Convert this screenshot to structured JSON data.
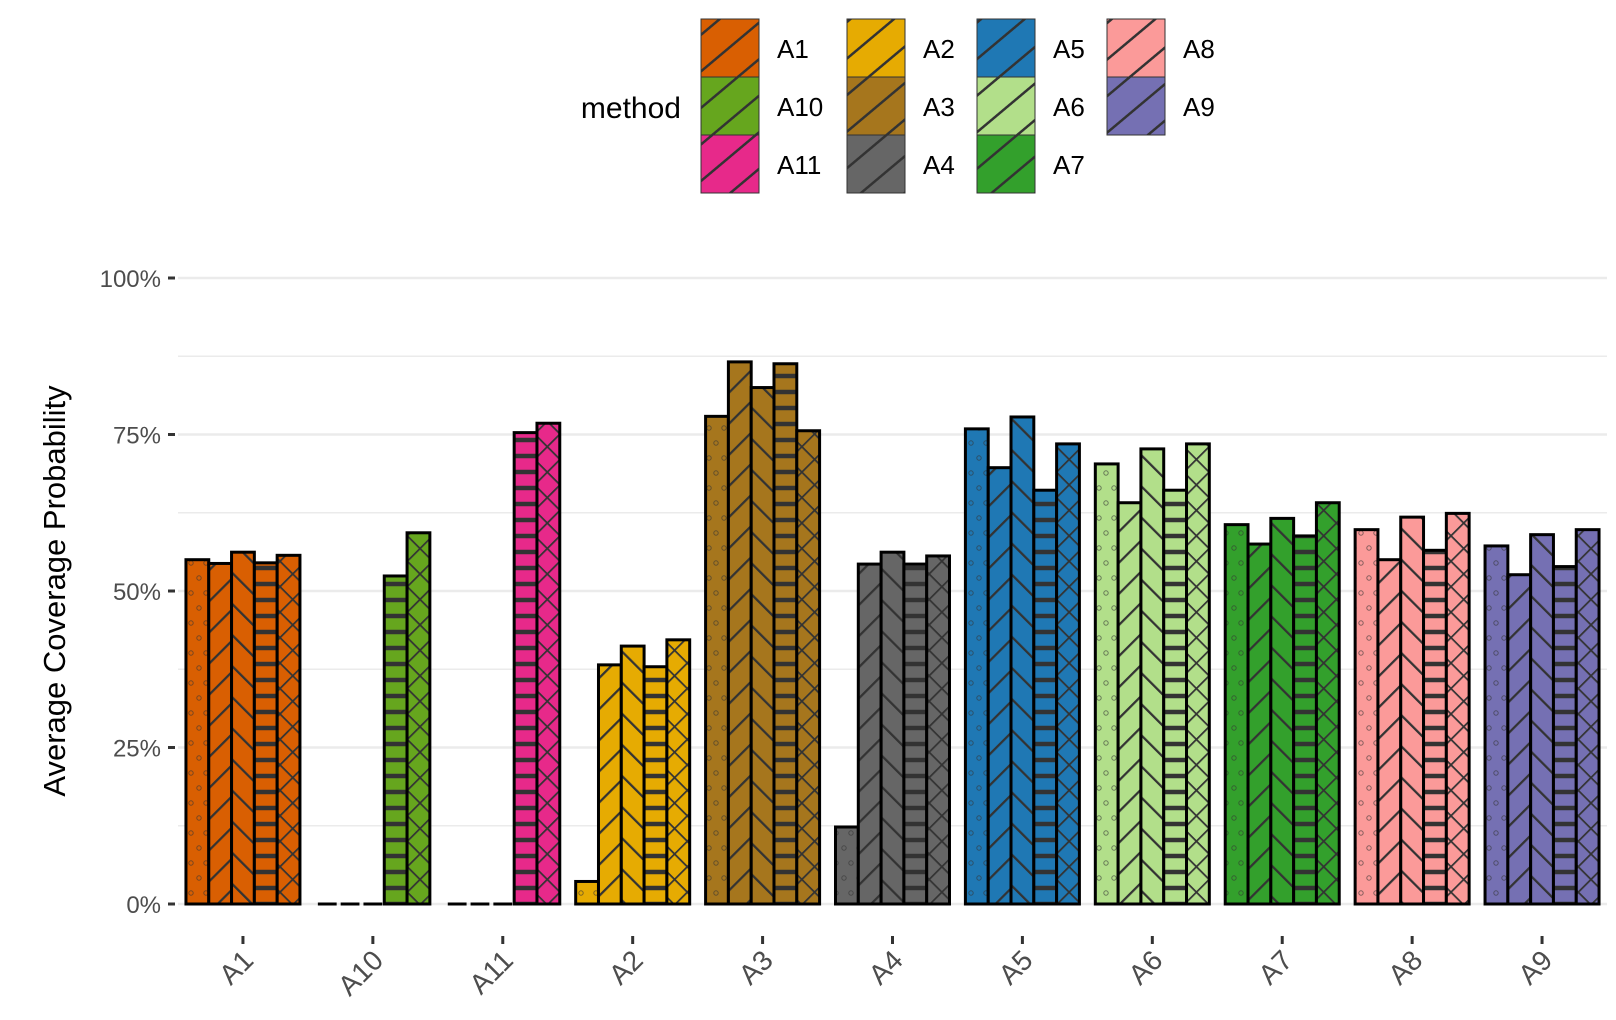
{
  "chart_data": {
    "type": "bar",
    "title": "",
    "xlabel": "",
    "ylabel": "Average Coverage Probability",
    "ylim": [
      0,
      1
    ],
    "y_ticks": [
      0,
      0.25,
      0.5,
      0.75,
      1.0
    ],
    "y_tick_labels": [
      "0%",
      "25%",
      "50%",
      "75%",
      "100%"
    ],
    "grid": true,
    "legend": {
      "title": "method",
      "placement": "top",
      "entries": [
        "A1",
        "A10",
        "A11",
        "A2",
        "A3",
        "A4",
        "A5",
        "A6",
        "A7",
        "A8",
        "A9"
      ]
    },
    "categories": [
      "A1",
      "A10",
      "A11",
      "A2",
      "A3",
      "A4",
      "A5",
      "A6",
      "A7",
      "A8",
      "A9"
    ],
    "category_colors": {
      "A1": "#d95f02",
      "A10": "#66a61e",
      "A11": "#e7298a",
      "A2": "#e6ab02",
      "A3": "#a6761d",
      "A4": "#666666",
      "A5": "#1f78b4",
      "A6": "#b2df8a",
      "A7": "#33a02c",
      "A8": "#fb9a99",
      "A9": "#7570b3"
    },
    "sub_bar_patterns": [
      "dots",
      "stripe-forward",
      "stripe-backward",
      "stripe-horizontal",
      "crosshatch"
    ],
    "series": [
      {
        "name": "bar1-dots",
        "values": [
          0.55,
          0.0,
          0.0,
          0.036,
          0.779,
          0.123,
          0.759,
          0.703,
          0.606,
          0.598,
          0.572
        ]
      },
      {
        "name": "bar2-forward",
        "values": [
          0.544,
          0.0,
          0.0,
          0.382,
          0.866,
          0.543,
          0.697,
          0.641,
          0.575,
          0.55,
          0.526
        ]
      },
      {
        "name": "bar3-backward",
        "values": [
          0.562,
          0.0,
          0.0,
          0.412,
          0.825,
          0.562,
          0.778,
          0.727,
          0.616,
          0.618,
          0.59
        ]
      },
      {
        "name": "bar4-horizontal",
        "values": [
          0.545,
          0.524,
          0.753,
          0.379,
          0.863,
          0.543,
          0.661,
          0.661,
          0.588,
          0.565,
          0.539
        ]
      },
      {
        "name": "bar5-crosshatch",
        "values": [
          0.557,
          0.593,
          0.768,
          0.422,
          0.756,
          0.556,
          0.735,
          0.735,
          0.641,
          0.624,
          0.598
        ]
      }
    ]
  }
}
